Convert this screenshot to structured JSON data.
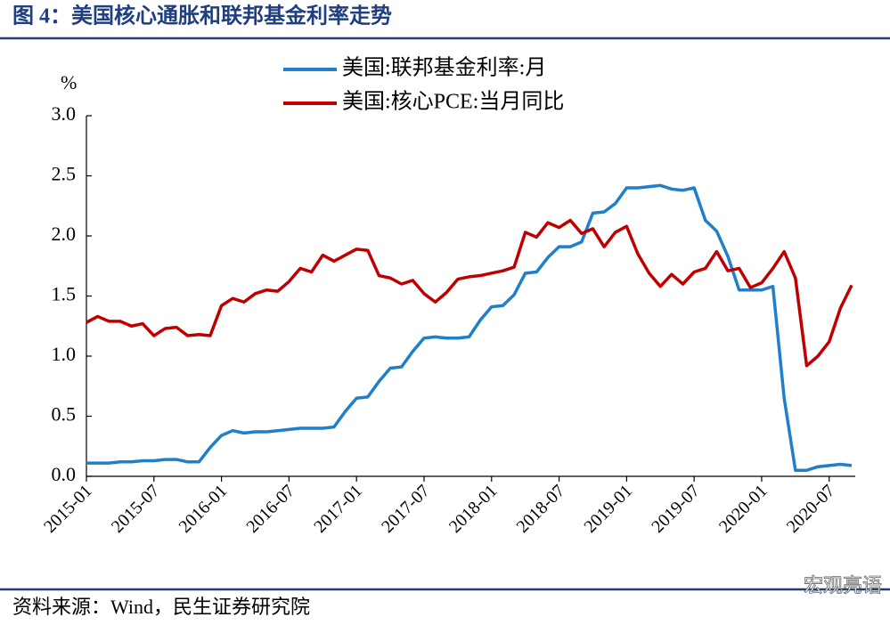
{
  "chart_data": {
    "type": "line",
    "title": "图 4：美国核心通胀和联邦基金利率走势",
    "y_label": "%",
    "source": "资料来源：Wind，民生证券研究院",
    "watermark": "宏观亮语",
    "categories": [
      "2015-01",
      null,
      null,
      null,
      null,
      null,
      "2015-07",
      null,
      null,
      null,
      null,
      null,
      "2016-01",
      null,
      null,
      null,
      null,
      null,
      "2016-07",
      null,
      null,
      null,
      null,
      null,
      "2017-01",
      null,
      null,
      null,
      null,
      null,
      "2017-07",
      null,
      null,
      null,
      null,
      null,
      "2018-01",
      null,
      null,
      null,
      null,
      null,
      "2018-07",
      null,
      null,
      null,
      null,
      null,
      "2019-01",
      null,
      null,
      null,
      null,
      null,
      "2019-07",
      null,
      null,
      null,
      null,
      null,
      "2020-01",
      null,
      null,
      null,
      null,
      null,
      "2020-07",
      null,
      null
    ],
    "series": [
      {
        "name": "美国:联邦基金利率:月",
        "color": "#1f7fcb",
        "values": [
          0.11,
          0.11,
          0.11,
          0.12,
          0.12,
          0.13,
          0.13,
          0.14,
          0.14,
          0.12,
          0.12,
          0.24,
          0.34,
          0.38,
          0.36,
          0.37,
          0.37,
          0.38,
          0.39,
          0.4,
          0.4,
          0.4,
          0.41,
          0.54,
          0.65,
          0.66,
          0.79,
          0.9,
          0.91,
          1.04,
          1.15,
          1.16,
          1.15,
          1.15,
          1.16,
          1.3,
          1.41,
          1.42,
          1.51,
          1.69,
          1.7,
          1.82,
          1.91,
          1.91,
          1.95,
          2.19,
          2.2,
          2.27,
          2.4,
          2.4,
          2.41,
          2.42,
          2.39,
          2.38,
          2.4,
          2.13,
          2.04,
          1.83,
          1.55,
          1.55,
          1.55,
          1.58,
          0.65,
          0.05,
          0.05,
          0.08,
          0.09,
          0.1,
          0.09
        ]
      },
      {
        "name": "美国:核心PCE:当月同比",
        "color": "#c00000",
        "values": [
          1.28,
          1.33,
          1.29,
          1.29,
          1.25,
          1.27,
          1.17,
          1.23,
          1.24,
          1.17,
          1.18,
          1.17,
          1.42,
          1.48,
          1.45,
          1.52,
          1.55,
          1.54,
          1.62,
          1.73,
          1.7,
          1.84,
          1.79,
          1.84,
          1.89,
          1.88,
          1.67,
          1.65,
          1.6,
          1.63,
          1.52,
          1.45,
          1.53,
          1.64,
          1.66,
          1.67,
          1.69,
          1.71,
          1.74,
          2.03,
          1.99,
          2.11,
          2.07,
          2.13,
          2.02,
          2.06,
          1.91,
          2.03,
          2.08,
          1.85,
          1.69,
          1.58,
          1.68,
          1.6,
          1.7,
          1.73,
          1.87,
          1.71,
          1.73,
          1.57,
          1.61,
          1.73,
          1.87,
          1.65,
          0.92,
          1.0,
          1.12,
          1.4,
          1.59
        ]
      }
    ],
    "ylim": [
      0,
      3
    ],
    "yticks": [
      {
        "value": 0,
        "label": "0.0"
      },
      {
        "value": 0.5,
        "label": "0.5"
      },
      {
        "value": 1,
        "label": "1.0"
      },
      {
        "value": 1.5,
        "label": "1.5"
      },
      {
        "value": 2,
        "label": "2.0"
      },
      {
        "value": 2.5,
        "label": "2.5"
      },
      {
        "value": 3,
        "label": "3.0"
      }
    ],
    "legend": "top"
  }
}
